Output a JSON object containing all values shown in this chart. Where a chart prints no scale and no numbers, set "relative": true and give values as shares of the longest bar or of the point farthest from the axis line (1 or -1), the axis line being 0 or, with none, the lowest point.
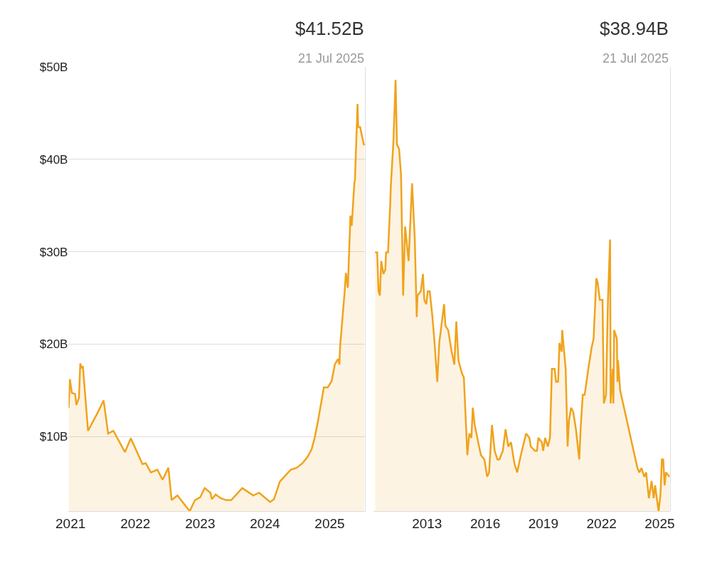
{
  "chart_data": [
    {
      "type": "area",
      "title": "$41.52B",
      "subtitle": "21 Jul 2025",
      "color": "#f0a31c",
      "grid": "y",
      "x": [
        2020.97,
        2020.99,
        2021.02,
        2021.07,
        2021.09,
        2021.13,
        2021.15,
        2021.17,
        2021.19,
        2021.27,
        2021.42,
        2021.51,
        2021.58,
        2021.66,
        2021.84,
        2021.93,
        2022.11,
        2022.16,
        2022.24,
        2022.34,
        2022.42,
        2022.51,
        2022.56,
        2022.65,
        2022.84,
        2022.92,
        2023.0,
        2023.07,
        2023.16,
        2023.18,
        2023.24,
        2023.32,
        2023.4,
        2023.48,
        2023.65,
        2023.82,
        2023.91,
        2024.08,
        2024.14,
        2024.23,
        2024.32,
        2024.4,
        2024.49,
        2024.58,
        2024.66,
        2024.72,
        2024.77,
        2024.82,
        2024.91,
        2024.97,
        2025.03,
        2025.08,
        2025.13,
        2025.15,
        2025.16,
        2025.23,
        2025.25,
        2025.28,
        2025.32,
        2025.34,
        2025.38,
        2025.39,
        2025.43,
        2025.44,
        2025.47,
        2025.49,
        2025.53
      ],
      "values": [
        13.1,
        16.2,
        14.7,
        14.6,
        13.4,
        14.2,
        17.9,
        17.4,
        17.6,
        10.6,
        12.6,
        13.9,
        10.3,
        10.6,
        8.3,
        9.8,
        7.0,
        7.1,
        6.1,
        6.4,
        5.3,
        6.6,
        3.1,
        3.6,
        1.9,
        3.1,
        3.4,
        4.4,
        3.9,
        3.2,
        3.7,
        3.3,
        3.1,
        3.1,
        4.4,
        3.6,
        3.9,
        2.9,
        3.2,
        5.1,
        5.8,
        6.4,
        6.6,
        7.1,
        7.8,
        8.6,
        9.9,
        11.7,
        15.3,
        15.3,
        16.0,
        17.8,
        18.4,
        17.8,
        19.7,
        25.6,
        27.7,
        26.1,
        33.9,
        32.8,
        37.4,
        37.8,
        46.0,
        43.5,
        43.5,
        42.8,
        41.5
      ],
      "xlim": [
        2020.97,
        2025.55
      ],
      "xticks": [
        2021,
        2022,
        2023,
        2024,
        2025
      ],
      "ylim": [
        1.9,
        50
      ],
      "yticks": [
        {
          "value": 10,
          "label": "$10B"
        },
        {
          "value": 20,
          "label": "$20B"
        },
        {
          "value": 30,
          "label": "$30B"
        },
        {
          "value": 40,
          "label": "$40B"
        },
        {
          "value": 50,
          "label": "$50B"
        }
      ]
    },
    {
      "type": "area",
      "title": "$38.94B",
      "subtitle": "21 Jul 2025",
      "color": "#f0a31c",
      "relative": true,
      "tick_labels": "x",
      "x": [
        2010.32,
        2010.43,
        2010.5,
        2010.57,
        2010.64,
        2010.75,
        2010.85,
        2010.89,
        2010.99,
        2011.1,
        2011.13,
        2011.27,
        2011.38,
        2011.45,
        2011.56,
        2011.66,
        2011.77,
        2011.87,
        2012.05,
        2012.23,
        2012.37,
        2012.47,
        2012.51,
        2012.68,
        2012.79,
        2012.86,
        2012.96,
        2013.04,
        2013.14,
        2013.28,
        2013.39,
        2013.53,
        2013.63,
        2013.88,
        2013.95,
        2014.09,
        2014.27,
        2014.41,
        2014.51,
        2014.62,
        2014.8,
        2014.9,
        2015.08,
        2015.18,
        2015.29,
        2015.36,
        2015.46,
        2015.64,
        2015.78,
        2015.96,
        2016.1,
        2016.2,
        2016.35,
        2016.49,
        2016.63,
        2016.73,
        2016.91,
        2017.05,
        2017.19,
        2017.33,
        2017.51,
        2017.65,
        2017.79,
        2017.89,
        2018.11,
        2018.28,
        2018.35,
        2018.56,
        2018.67,
        2018.74,
        2018.92,
        2018.99,
        2019.09,
        2019.23,
        2019.34,
        2019.44,
        2019.58,
        2019.65,
        2019.76,
        2019.83,
        2019.94,
        2019.97,
        2020.15,
        2020.25,
        2020.32,
        2020.43,
        2020.54,
        2020.68,
        2020.85,
        2020.92,
        2021.03,
        2021.13,
        2021.35,
        2021.49,
        2021.59,
        2021.73,
        2021.8,
        2021.91,
        2022.05,
        2022.12,
        2022.23,
        2022.33,
        2022.44,
        2022.47,
        2022.58,
        2022.61,
        2022.65,
        2022.79,
        2022.82,
        2022.85,
        2022.96,
        2023.85,
        2023.95,
        2024.06,
        2024.2,
        2024.3,
        2024.44,
        2024.58,
        2024.69,
        2024.76,
        2024.94,
        2025.04,
        2025.11,
        2025.18,
        2025.25,
        2025.32,
        2025.5
      ],
      "values": [
        0.6,
        0.6,
        0.51,
        0.5,
        0.58,
        0.55,
        0.56,
        0.6,
        0.6,
        0.71,
        0.75,
        0.86,
        1,
        0.85,
        0.84,
        0.78,
        0.5,
        0.66,
        0.58,
        0.76,
        0.63,
        0.45,
        0.5,
        0.51,
        0.55,
        0.49,
        0.48,
        0.51,
        0.51,
        0.45,
        0.39,
        0.3,
        0.39,
        0.48,
        0.43,
        0.42,
        0.37,
        0.34,
        0.44,
        0.35,
        0.32,
        0.31,
        0.13,
        0.18,
        0.17,
        0.24,
        0.2,
        0.16,
        0.13,
        0.12,
        0.08,
        0.09,
        0.2,
        0.14,
        0.12,
        0.12,
        0.14,
        0.19,
        0.15,
        0.16,
        0.11,
        0.09,
        0.12,
        0.14,
        0.18,
        0.17,
        0.15,
        0.14,
        0.14,
        0.17,
        0.16,
        0.14,
        0.17,
        0.15,
        0.17,
        0.33,
        0.33,
        0.3,
        0.3,
        0.39,
        0.37,
        0.42,
        0.33,
        0.15,
        0.21,
        0.24,
        0.23,
        0.19,
        0.12,
        0.19,
        0.27,
        0.27,
        0.34,
        0.38,
        0.4,
        0.54,
        0.53,
        0.49,
        0.49,
        0.25,
        0.27,
        0.49,
        0.63,
        0.25,
        0.33,
        0.25,
        0.42,
        0.4,
        0.3,
        0.35,
        0.28,
        0.1,
        0.09,
        0.1,
        0.08,
        0.09,
        0.03,
        0.07,
        0.03,
        0.06,
        0,
        0.04,
        0.12,
        0.12,
        0.06,
        0.09,
        0.08
      ],
      "xlim": [
        2010.25,
        2025.55
      ],
      "xticks": [
        2013,
        2016,
        2019,
        2022,
        2025
      ]
    }
  ]
}
